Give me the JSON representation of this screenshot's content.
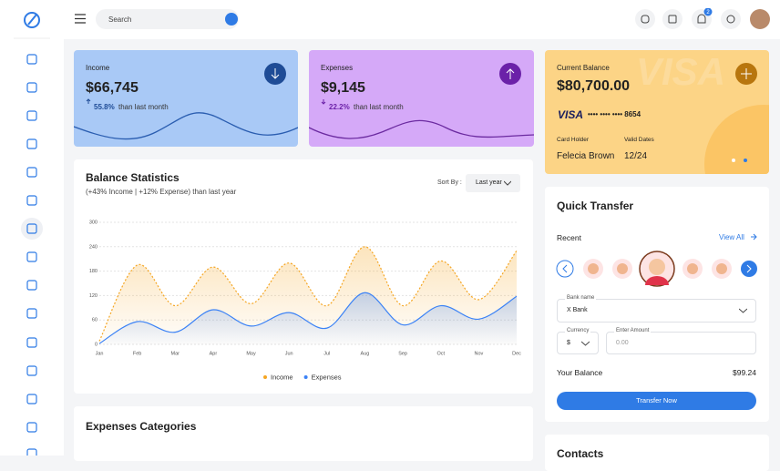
{
  "topbar": {
    "search_placeholder": "Search",
    "notification_count": "2"
  },
  "cards": {
    "income": {
      "label": "Income",
      "amount": "$66,745",
      "change": "55.8%",
      "note": "than last month"
    },
    "expenses": {
      "label": "Expenses",
      "amount": "$9,145",
      "change": "22.2%",
      "note": "than last month"
    },
    "balance": {
      "label": "Current Balance",
      "amount": "$80,700.00",
      "brand": "VISA",
      "card_number": "•••• •••• •••• 8654",
      "holder_label": "Card Holder",
      "holder": "Felecia Brown",
      "valid_label": "Valid Dates",
      "valid": "12/24"
    }
  },
  "chart_data": {
    "type": "line",
    "title": "Balance Statistics",
    "subtitle": "(+43% Income | +12% Expense) than last year",
    "sort_label": "Sort By :",
    "sort_value": "Last year",
    "categories": [
      "Jan",
      "Feb",
      "Mar",
      "Apr",
      "May",
      "Jun",
      "Jul",
      "Aug",
      "Sep",
      "Oct",
      "Nov",
      "Dec"
    ],
    "series": [
      {
        "name": "Income",
        "color": "#f5a623",
        "line_style": "dotted",
        "values": [
          8,
          195,
          95,
          190,
          100,
          200,
          95,
          240,
          95,
          205,
          110,
          230
        ]
      },
      {
        "name": "Expenses",
        "color": "#3b82f6",
        "line_style": "solid",
        "values": [
          2,
          56,
          30,
          85,
          45,
          78,
          40,
          127,
          48,
          95,
          62,
          118
        ]
      }
    ],
    "ylim": [
      0,
      300
    ],
    "yticks": [
      0,
      60,
      120,
      180,
      240,
      300
    ],
    "grid": true,
    "legend": "bottom"
  },
  "expenses_categories": {
    "title": "Expenses Categories"
  },
  "quick_transfer": {
    "title": "Quick Transfer",
    "recent": "Recent",
    "view_all": "View All",
    "bank_label": "Bank name",
    "bank_value": "X Bank",
    "currency_label": "Currency",
    "currency_value": "$",
    "amount_label": "Enter Amount",
    "amount_placeholder": "0.00",
    "balance_label": "Your Balance",
    "balance_value": "$99.24",
    "button": "Transfer Now"
  },
  "contacts": {
    "title": "Contacts"
  }
}
